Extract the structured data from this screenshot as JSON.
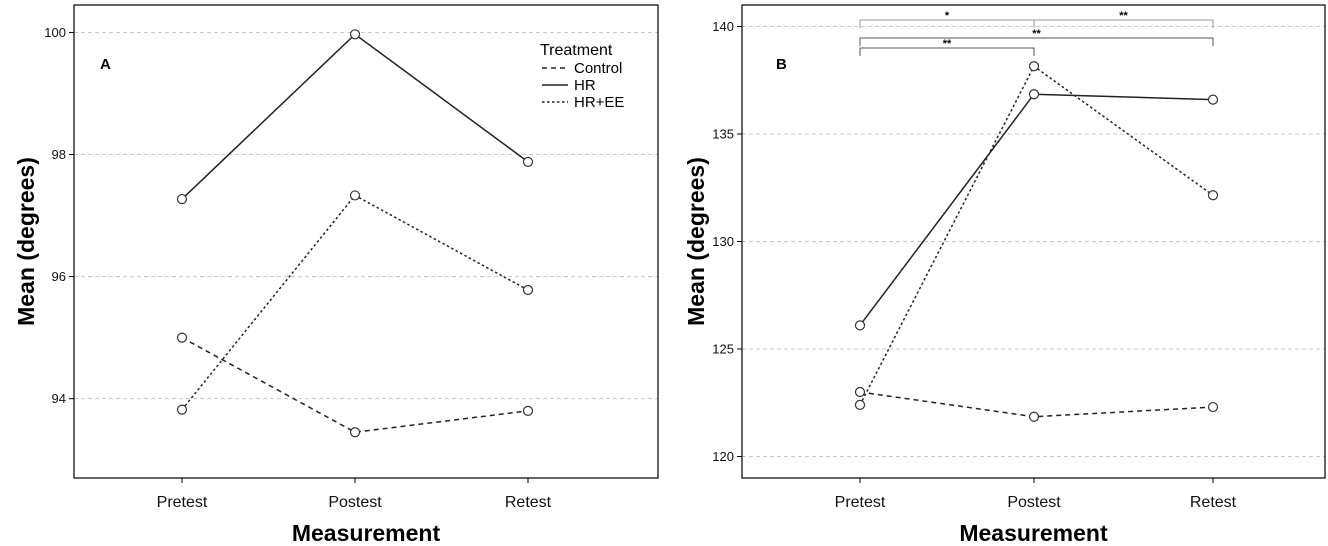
{
  "chart_data": [
    {
      "type": "line",
      "panel_label": "A",
      "xlabel": "Measurement",
      "ylabel": "Mean (degrees)",
      "categories": [
        "Pretest",
        "Postest",
        "Retest"
      ],
      "yticks": [
        "94",
        "96",
        "98",
        "100"
      ],
      "ytick_values": [
        94,
        96,
        98,
        100
      ],
      "ylim": [
        92.7,
        100.45
      ],
      "grid": true,
      "legend": {
        "title": "Treatment",
        "placement": "top-right",
        "entries": [
          "Control",
          "HR",
          "HR+EE"
        ]
      },
      "series": [
        {
          "name": "Control",
          "style": "dashed",
          "values": [
            95.0,
            93.45,
            93.8
          ]
        },
        {
          "name": "HR",
          "style": "solid",
          "values": [
            97.27,
            99.97,
            97.88
          ]
        },
        {
          "name": "HR+EE",
          "style": "dotted",
          "values": [
            93.82,
            97.33,
            95.78
          ]
        }
      ]
    },
    {
      "type": "line",
      "panel_label": "B",
      "xlabel": "Measurement",
      "ylabel": "Mean (degrees)",
      "categories": [
        "Pretest",
        "Postest",
        "Retest"
      ],
      "yticks": [
        "120",
        "125",
        "130",
        "135",
        "140"
      ],
      "ytick_values": [
        120,
        125,
        130,
        135,
        140
      ],
      "ylim": [
        119.0,
        141.0
      ],
      "grid": true,
      "series": [
        {
          "name": "Control",
          "style": "dashed",
          "values": [
            123.0,
            121.85,
            122.3
          ]
        },
        {
          "name": "HR",
          "style": "solid",
          "values": [
            126.1,
            136.85,
            136.6
          ]
        },
        {
          "name": "HR+EE",
          "style": "dotted",
          "values": [
            122.4,
            138.15,
            132.15
          ]
        }
      ],
      "significance": [
        {
          "from": 0,
          "to": 1,
          "label": "*",
          "color": "#9a9a9a"
        },
        {
          "from": 1,
          "to": 2,
          "label": "**",
          "color": "#9a9a9a"
        },
        {
          "from": 0,
          "to": 2,
          "label": "**",
          "color": "#555555"
        },
        {
          "from": 0,
          "to": 1,
          "label": "**",
          "color": "#555555"
        }
      ]
    }
  ]
}
